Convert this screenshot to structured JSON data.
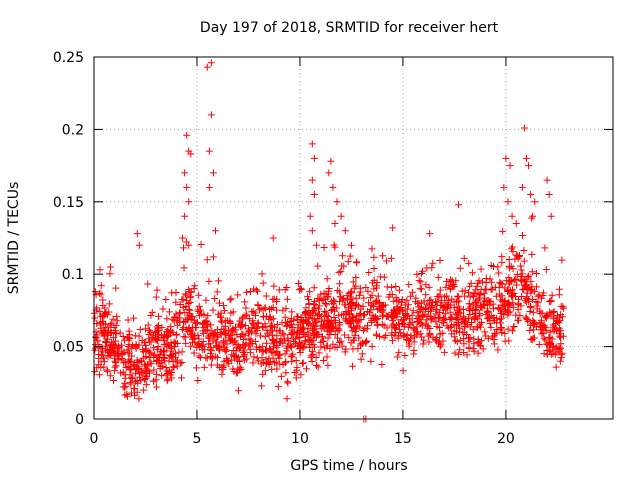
{
  "chart_data": {
    "type": "scatter",
    "title": "Day 197 of 2018, SRMTID for receiver hert",
    "xlabel": "GPS time / hours",
    "ylabel": "SRMTID / TECUs",
    "xlim": [
      0,
      25.2
    ],
    "ylim": [
      0,
      0.25
    ],
    "x_ticks": [
      0,
      5,
      10,
      15,
      20
    ],
    "x_tick_labels": [
      "0",
      "5",
      "10",
      "15",
      "20"
    ],
    "y_ticks": [
      0,
      0.05,
      0.1,
      0.15,
      0.2,
      0.25
    ],
    "y_tick_labels": [
      "0",
      "0.05",
      "0.1",
      "0.15",
      "0.2",
      "0.25"
    ],
    "grid": true,
    "marker": "+",
    "marker_color": "#ff0000",
    "grid_color": "#a0a0a0",
    "series": [
      {
        "name": "SRMTID",
        "trend": [
          [
            0.0,
            0.06
          ],
          [
            0.5,
            0.058
          ],
          [
            1.0,
            0.05
          ],
          [
            1.5,
            0.043
          ],
          [
            2.0,
            0.036
          ],
          [
            2.5,
            0.04
          ],
          [
            3.0,
            0.047
          ],
          [
            3.5,
            0.052
          ],
          [
            4.0,
            0.058
          ],
          [
            4.5,
            0.07
          ],
          [
            5.0,
            0.06
          ],
          [
            5.5,
            0.06
          ],
          [
            6.0,
            0.058
          ],
          [
            6.5,
            0.055
          ],
          [
            7.0,
            0.052
          ],
          [
            7.5,
            0.058
          ],
          [
            8.0,
            0.062
          ],
          [
            8.5,
            0.058
          ],
          [
            9.0,
            0.052
          ],
          [
            9.5,
            0.055
          ],
          [
            10.0,
            0.058
          ],
          [
            10.5,
            0.065
          ],
          [
            11.0,
            0.062
          ],
          [
            11.5,
            0.07
          ],
          [
            12.0,
            0.078
          ],
          [
            12.5,
            0.07
          ],
          [
            13.0,
            0.068
          ],
          [
            13.5,
            0.075
          ],
          [
            14.0,
            0.078
          ],
          [
            14.5,
            0.072
          ],
          [
            15.0,
            0.07
          ],
          [
            15.5,
            0.068
          ],
          [
            16.0,
            0.07
          ],
          [
            16.5,
            0.072
          ],
          [
            17.0,
            0.075
          ],
          [
            17.5,
            0.072
          ],
          [
            18.0,
            0.068
          ],
          [
            18.5,
            0.07
          ],
          [
            19.0,
            0.075
          ],
          [
            19.5,
            0.072
          ],
          [
            20.0,
            0.085
          ],
          [
            20.5,
            0.09
          ],
          [
            21.0,
            0.085
          ],
          [
            21.5,
            0.072
          ],
          [
            22.0,
            0.062
          ],
          [
            22.5,
            0.06
          ],
          [
            22.8,
            0.058
          ]
        ],
        "spread": 0.024,
        "x_range": [
          0.0,
          22.8
        ],
        "n_points": 2000,
        "points": [
          [
            4.5,
            0.196
          ],
          [
            4.6,
            0.185
          ],
          [
            4.7,
            0.183
          ],
          [
            4.4,
            0.17
          ],
          [
            4.5,
            0.16
          ],
          [
            4.6,
            0.15
          ],
          [
            4.4,
            0.14
          ],
          [
            4.3,
            0.125
          ],
          [
            4.6,
            0.12
          ],
          [
            5.5,
            0.243
          ],
          [
            5.7,
            0.246
          ],
          [
            5.7,
            0.21
          ],
          [
            5.6,
            0.185
          ],
          [
            5.8,
            0.17
          ],
          [
            5.6,
            0.16
          ],
          [
            5.9,
            0.13
          ],
          [
            5.5,
            0.11
          ],
          [
            5.8,
            0.112
          ],
          [
            10.6,
            0.19
          ],
          [
            10.7,
            0.18
          ],
          [
            10.6,
            0.165
          ],
          [
            10.7,
            0.155
          ],
          [
            10.5,
            0.14
          ],
          [
            10.6,
            0.13
          ],
          [
            10.8,
            0.12
          ],
          [
            11.5,
            0.178
          ],
          [
            11.4,
            0.17
          ],
          [
            11.6,
            0.16
          ],
          [
            11.8,
            0.15
          ],
          [
            12.0,
            0.14
          ],
          [
            11.7,
            0.135
          ],
          [
            12.2,
            0.13
          ],
          [
            12.5,
            0.12
          ],
          [
            20.0,
            0.18
          ],
          [
            20.2,
            0.175
          ],
          [
            19.9,
            0.16
          ],
          [
            20.1,
            0.15
          ],
          [
            20.3,
            0.14
          ],
          [
            20.5,
            0.135
          ],
          [
            20.9,
            0.201
          ],
          [
            21.0,
            0.18
          ],
          [
            21.1,
            0.175
          ],
          [
            20.8,
            0.16
          ],
          [
            21.2,
            0.155
          ],
          [
            21.4,
            0.15
          ],
          [
            21.3,
            0.14
          ],
          [
            22.0,
            0.165
          ],
          [
            22.1,
            0.155
          ],
          [
            22.2,
            0.14
          ],
          [
            17.7,
            0.148
          ],
          [
            16.3,
            0.128
          ],
          [
            14.5,
            0.132
          ],
          [
            8.7,
            0.125
          ],
          [
            2.1,
            0.128
          ],
          [
            2.2,
            0.12
          ],
          [
            0.8,
            0.105
          ],
          [
            13.1,
            0.0
          ],
          [
            13.2,
            0.0
          ]
        ]
      }
    ]
  }
}
